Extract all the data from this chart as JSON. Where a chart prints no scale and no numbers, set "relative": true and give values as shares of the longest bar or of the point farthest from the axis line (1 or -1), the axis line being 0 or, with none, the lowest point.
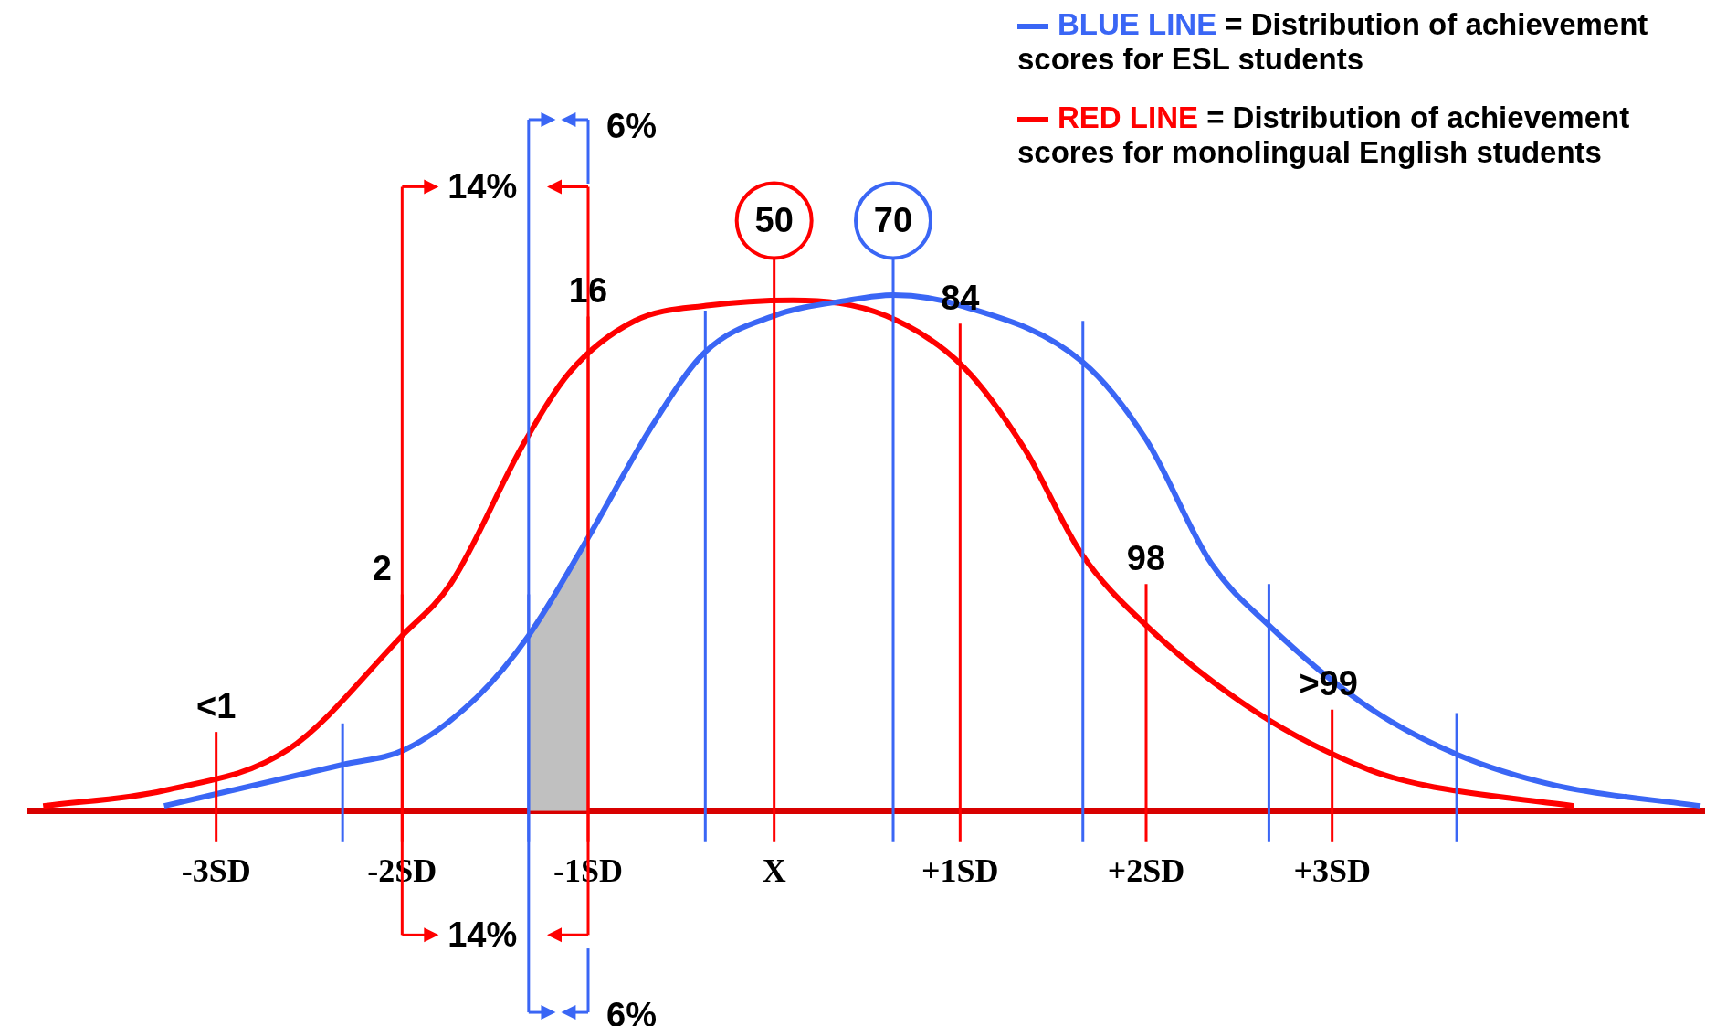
{
  "chart_data": {
    "type": "line",
    "relative": true,
    "legend": "top right",
    "tick_labels": "x",
    "xlim": [
      -4,
      5
    ],
    "xticks": [
      {
        "value": -3,
        "label": "-3SD"
      },
      {
        "value": -2,
        "label": "-2SD"
      },
      {
        "value": -1,
        "label": "-1SD"
      },
      {
        "value": 0,
        "label": "X"
      },
      {
        "value": 1,
        "label": "+1SD"
      },
      {
        "value": 2,
        "label": "+2SD"
      },
      {
        "value": 3,
        "label": "+3SD"
      }
    ],
    "series": [
      {
        "name": "BLUE LINE",
        "color": "#3a66f5",
        "x": [
          -3.28,
          -2.32,
          -1.98,
          -1.6,
          -1.32,
          -1.0,
          -0.65,
          -0.37,
          0,
          0.4,
          0.64,
          1.0,
          1.66,
          2.0,
          2.35,
          2.66,
          3.2,
          3.67,
          4.2,
          4.98
        ],
        "values": [
          0.01,
          0.09,
          0.12,
          0.22,
          0.34,
          0.53,
          0.75,
          0.89,
          0.96,
          0.99,
          1.0,
          0.98,
          0.87,
          0.72,
          0.48,
          0.36,
          0.2,
          0.11,
          0.05,
          0.01
        ]
      },
      {
        "name": "RED LINE",
        "color": "#ff0000",
        "x": [
          -3.93,
          -3.28,
          -2.61,
          -2.0,
          -1.74,
          -1.35,
          -1.1,
          -0.75,
          -0.35,
          0.1,
          0.6,
          1.02,
          1.35,
          1.65,
          2.0,
          2.6,
          3.2,
          3.5,
          4.3
        ],
        "values": [
          0.01,
          0.04,
          0.12,
          0.34,
          0.44,
          0.71,
          0.85,
          0.95,
          0.98,
          0.99,
          0.96,
          0.86,
          0.7,
          0.5,
          0.36,
          0.19,
          0.08,
          0.05,
          0.01
        ]
      },
      {
        "type": "area",
        "color": "#c0c0c0",
        "x": [
          -1.32,
          -1.16,
          -1.0
        ],
        "values": [
          0.34,
          0.43,
          0.53
        ]
      }
    ],
    "ref_lines": [
      {
        "axis": "x",
        "value": -3,
        "color": "#ff0000"
      },
      {
        "axis": "x",
        "value": -2,
        "color": "#ff0000"
      },
      {
        "axis": "x",
        "value": -1,
        "color": "#ff0000"
      },
      {
        "axis": "x",
        "value": 0,
        "color": "#ff0000"
      },
      {
        "axis": "x",
        "value": 1,
        "color": "#ff0000"
      },
      {
        "axis": "x",
        "value": 2,
        "color": "#ff0000"
      },
      {
        "axis": "x",
        "value": 3,
        "color": "#ff0000"
      },
      {
        "axis": "x",
        "value": -2.32,
        "color": "#3a66f5"
      },
      {
        "axis": "x",
        "value": -1.32,
        "color": "#3a66f5"
      },
      {
        "axis": "x",
        "value": -0.37,
        "color": "#3a66f5"
      },
      {
        "axis": "x",
        "value": 0.64,
        "color": "#3a66f5"
      },
      {
        "axis": "x",
        "value": 1.66,
        "color": "#3a66f5"
      },
      {
        "axis": "x",
        "value": 2.66,
        "color": "#3a66f5"
      },
      {
        "axis": "x",
        "value": 3.67,
        "color": "#3a66f5"
      }
    ],
    "annotations": [
      "= Distribution of achievement scores for ESL students",
      "= Distribution of achievement scores for monolingual English students",
      "14%",
      "6%",
      "14%",
      "6%",
      "<1",
      "2",
      "16",
      "50",
      "70",
      "84",
      "98",
      ">99"
    ]
  }
}
